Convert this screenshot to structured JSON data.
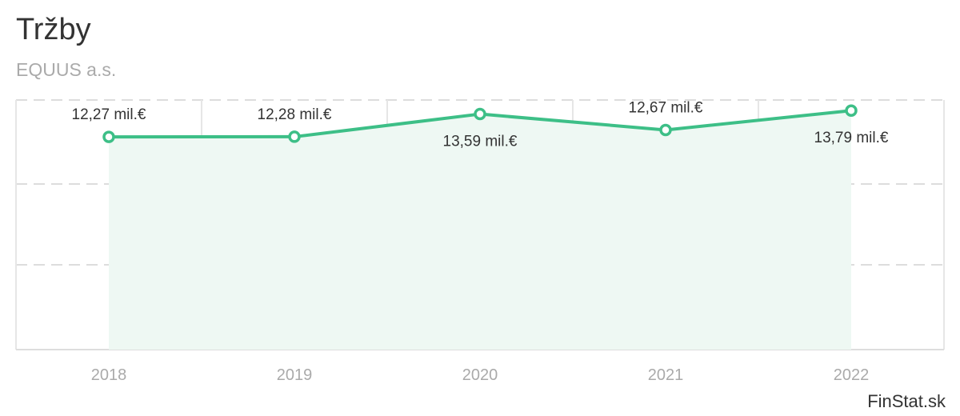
{
  "title": "Tržby",
  "subtitle": "EQUUS a.s.",
  "credit": "FinStat.sk",
  "colors": {
    "line": "#3dbf87",
    "area": "#eef8f3",
    "marker_fill": "#ffffff"
  },
  "chart_data": {
    "type": "area",
    "title": "Tržby",
    "subtitle": "EQUUS a.s.",
    "categories": [
      "2018",
      "2019",
      "2020",
      "2021",
      "2022"
    ],
    "values": [
      12.27,
      12.28,
      13.59,
      12.67,
      13.79
    ],
    "labels": [
      "12,27 mil.€",
      "12,28 mil.€",
      "13,59 mil.€",
      "12,67 mil.€",
      "13,79 mil.€"
    ],
    "label_position": [
      "above",
      "above",
      "below",
      "above",
      "below"
    ],
    "unit": "mil.€",
    "grid": true,
    "legend": false
  }
}
